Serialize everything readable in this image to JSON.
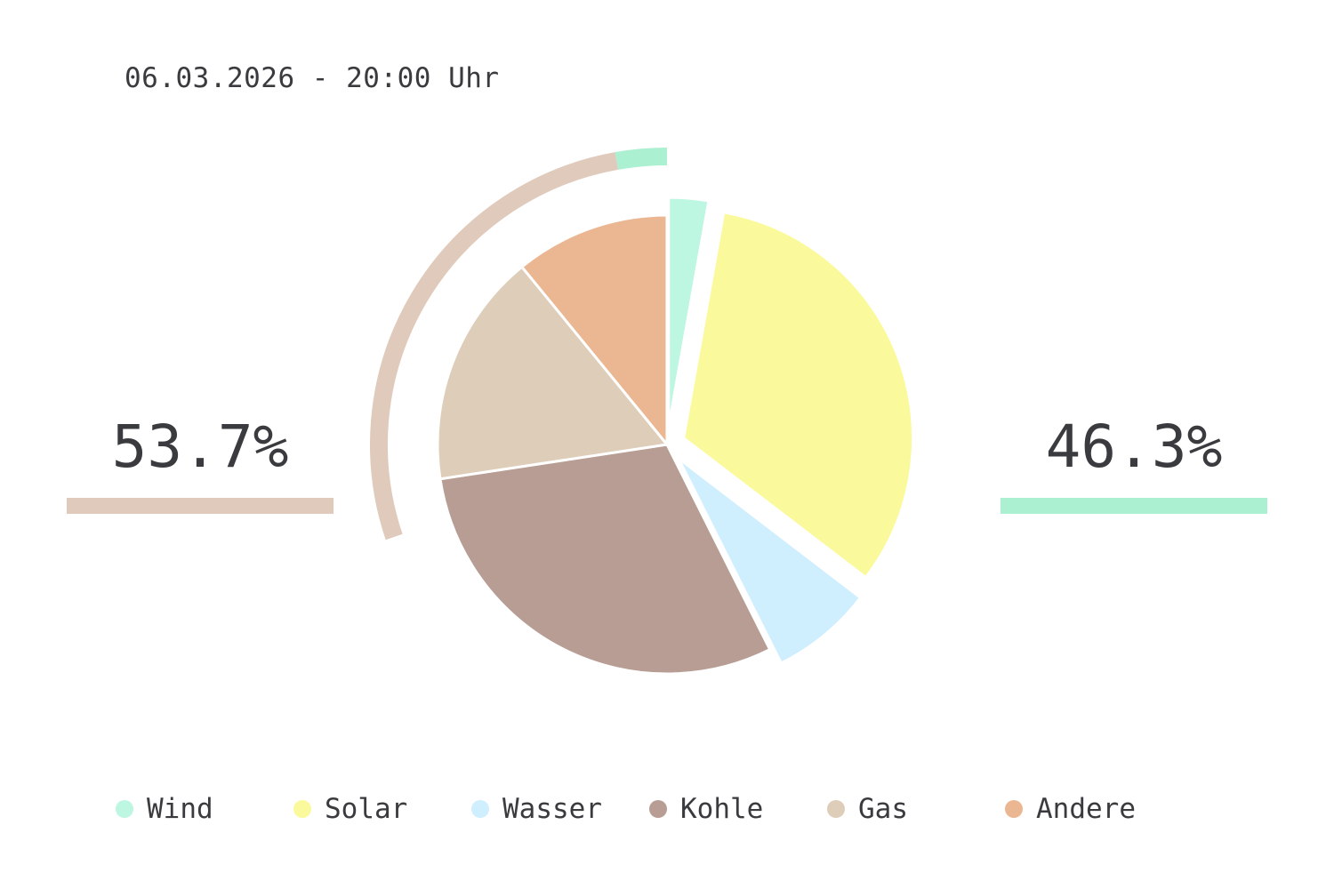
{
  "header": {
    "timestamp": "06.03.2026 - 20:00 Uhr"
  },
  "shares": {
    "left": {
      "value": "53.7%",
      "color": "#e0cabc"
    },
    "right": {
      "value": "46.3%",
      "color": "#aaf0d1"
    }
  },
  "chart_data": {
    "type": "pie",
    "title": "",
    "categories": [
      "Wind",
      "Solar",
      "Wasser",
      "Kohle",
      "Gas",
      "Andere"
    ],
    "values": [
      2.8,
      32.6,
      7.2,
      30.0,
      16.5,
      10.9
    ],
    "colors": [
      "#bdf6e1",
      "#fafa9c",
      "#cfeefe",
      "#b79d94",
      "#decdb8",
      "#ebb793"
    ],
    "exploded": [
      "Wind",
      "Solar",
      "Wasser"
    ],
    "group_rings": [
      {
        "members": [
          "Wind"
        ],
        "color": "#aaf0d1"
      },
      {
        "members": [
          "Gas",
          "Andere"
        ],
        "color": "#e0cabc"
      }
    ],
    "legend_position": "bottom"
  }
}
